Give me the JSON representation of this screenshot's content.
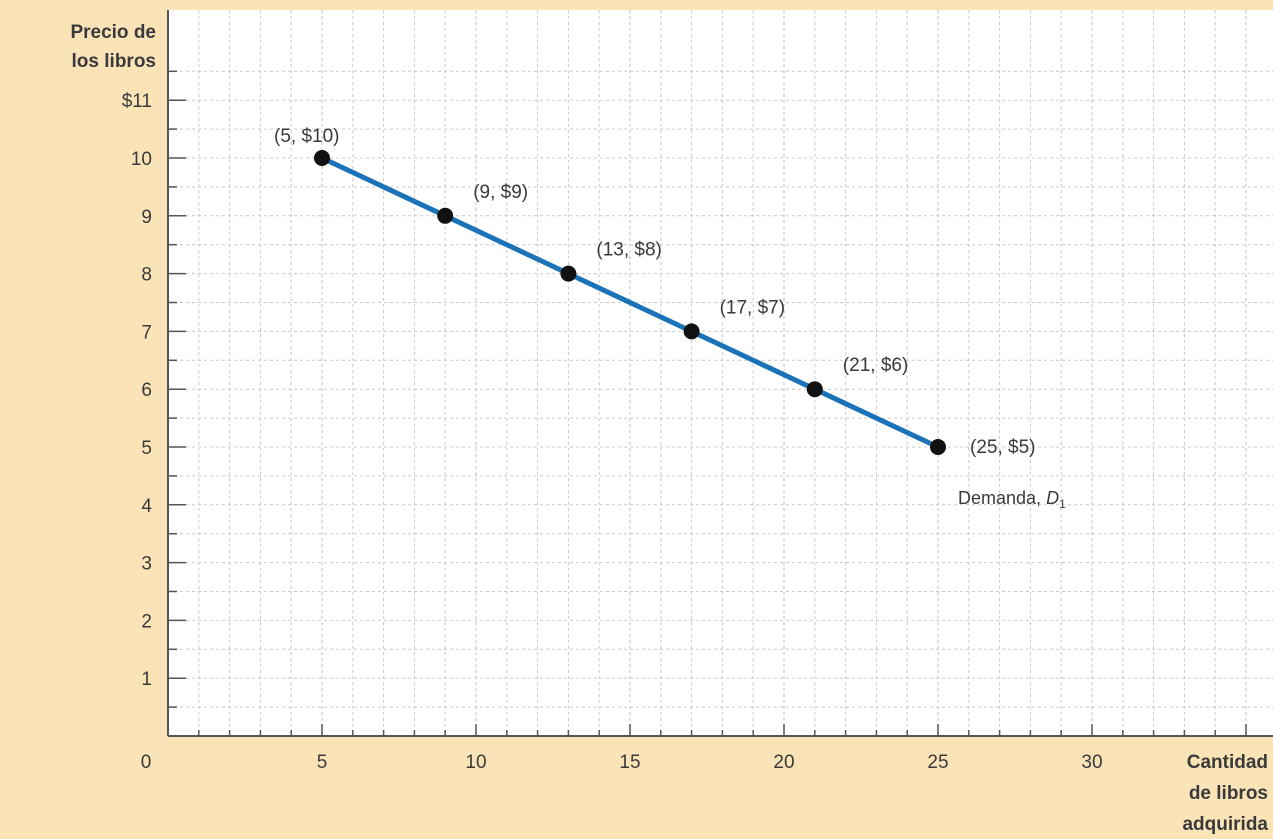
{
  "colors": {
    "frame_background": "#fbe3b8",
    "plot_background": "#ffffff",
    "grid_minor": "#c9c9c9",
    "grid_major": "#bdbdbd",
    "axis": "#555555",
    "line": "#1a73b8",
    "marker": "#111111",
    "text": "#3a3a3a"
  },
  "chart_data": {
    "type": "line",
    "title": "",
    "ylabel_lines": [
      "Precio de",
      "los libros"
    ],
    "xlabel_lines": [
      "Cantidad",
      "de libros",
      "adquirida"
    ],
    "origin_label": "0",
    "xlim": [
      0,
      35
    ],
    "ylim": [
      0,
      11.8
    ],
    "x_ticks": [
      {
        "value": 5,
        "label": "5"
      },
      {
        "value": 10,
        "label": "10"
      },
      {
        "value": 15,
        "label": "15"
      },
      {
        "value": 20,
        "label": "20"
      },
      {
        "value": 25,
        "label": "25"
      },
      {
        "value": 30,
        "label": "30"
      }
    ],
    "y_ticks": [
      {
        "value": 1,
        "label": "1"
      },
      {
        "value": 2,
        "label": "2"
      },
      {
        "value": 3,
        "label": "3"
      },
      {
        "value": 4,
        "label": "4"
      },
      {
        "value": 5,
        "label": "5"
      },
      {
        "value": 6,
        "label": "6"
      },
      {
        "value": 7,
        "label": "7"
      },
      {
        "value": 8,
        "label": "8"
      },
      {
        "value": 9,
        "label": "9"
      },
      {
        "value": 10,
        "label": "10"
      },
      {
        "value": 11,
        "label": "$11"
      }
    ],
    "grid": true,
    "series": [
      {
        "label_text": "Demanda, ",
        "label_italic": "D",
        "label_subscript": "1",
        "x": [
          5,
          9,
          13,
          17,
          21,
          25
        ],
        "y": [
          10,
          9,
          8,
          7,
          6,
          5
        ],
        "point_labels": [
          "(5, $10)",
          "(9, $9)",
          "(13, $8)",
          "(17, $7)",
          "(21, $6)",
          "(25, $5)"
        ]
      }
    ]
  }
}
